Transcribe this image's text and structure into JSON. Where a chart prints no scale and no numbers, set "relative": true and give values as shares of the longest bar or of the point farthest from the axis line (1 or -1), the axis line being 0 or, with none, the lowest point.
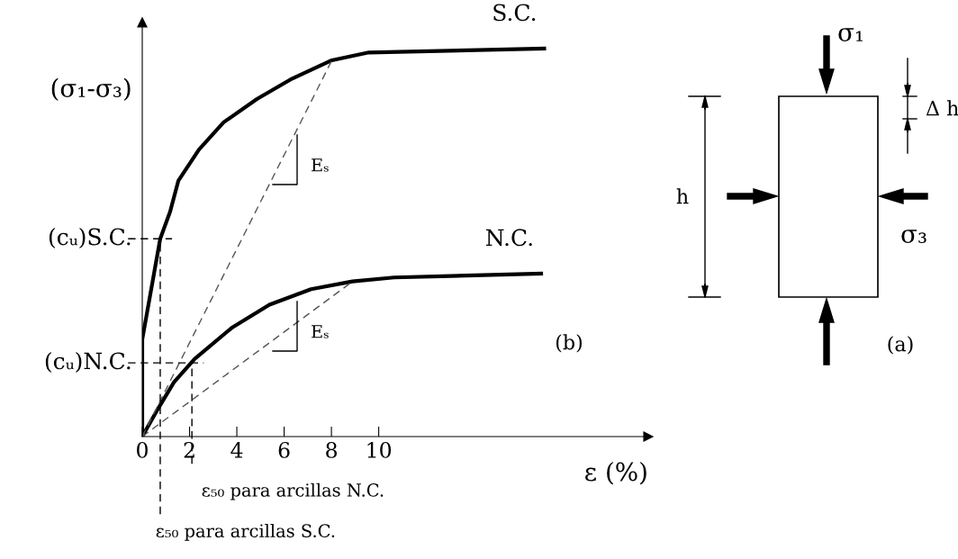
{
  "chart_data": {
    "type": "line",
    "relative": true,
    "ylabel": "(σ₁-σ₃)",
    "xlabel": "ε (%)",
    "xlim": [
      0,
      21.4
    ],
    "xticks": [
      0,
      2,
      4,
      6,
      8,
      10
    ],
    "grid": false,
    "legend": false,
    "marker": "none",
    "series": [
      {
        "name": "S.C.",
        "color": "#000000",
        "line_style": "solid",
        "x": [
          0,
          0,
          0.76,
          1.18,
          1.53,
          2.4,
          3.44,
          4.85,
          6.26,
          8.02,
          9.58,
          17.0
        ],
        "values": [
          0,
          0.25,
          0.51,
          0.58,
          0.66,
          0.74,
          0.81,
          0.87,
          0.92,
          0.97,
          0.99,
          1
        ]
      },
      {
        "name": "N.C.",
        "color": "#000000",
        "line_style": "solid",
        "x": [
          0,
          0.65,
          1.34,
          2.21,
          3.78,
          5.38,
          7.14,
          8.89,
          10.65,
          16.87
        ],
        "values": [
          0,
          0.07,
          0.14,
          0.2,
          0.28,
          0.34,
          0.38,
          0.4,
          0.41,
          0.42
        ]
      },
      {
        "color": "#555555",
        "line_style": "dashed",
        "x": [
          0,
          8.02
        ],
        "values": [
          0,
          0.97
        ]
      },
      {
        "color": "#555555",
        "line_style": "dashed",
        "x": [
          0,
          8.9
        ],
        "values": [
          0,
          0.4
        ]
      }
    ],
    "ref_lines": [
      {
        "axis": "y",
        "value": 0.51,
        "label": "(cᵤ)S.C.",
        "line_style": "dashed"
      },
      {
        "axis": "y",
        "value": 0.19,
        "label": "(cᵤ)N.C.",
        "line_style": "dashed"
      },
      {
        "axis": "x",
        "value": 0.76,
        "label": "ε₅₀ para arcillas S.C.",
        "line_style": "dashed"
      },
      {
        "axis": "x",
        "value": 2.1,
        "label": "ε₅₀ para arcillas N.C.",
        "line_style": "dashed"
      }
    ],
    "annotations": [
      "Eₛ",
      "Eₛ",
      "(b)",
      "σ₁",
      "Δ h",
      "h",
      "σ₃",
      "(a)"
    ]
  }
}
